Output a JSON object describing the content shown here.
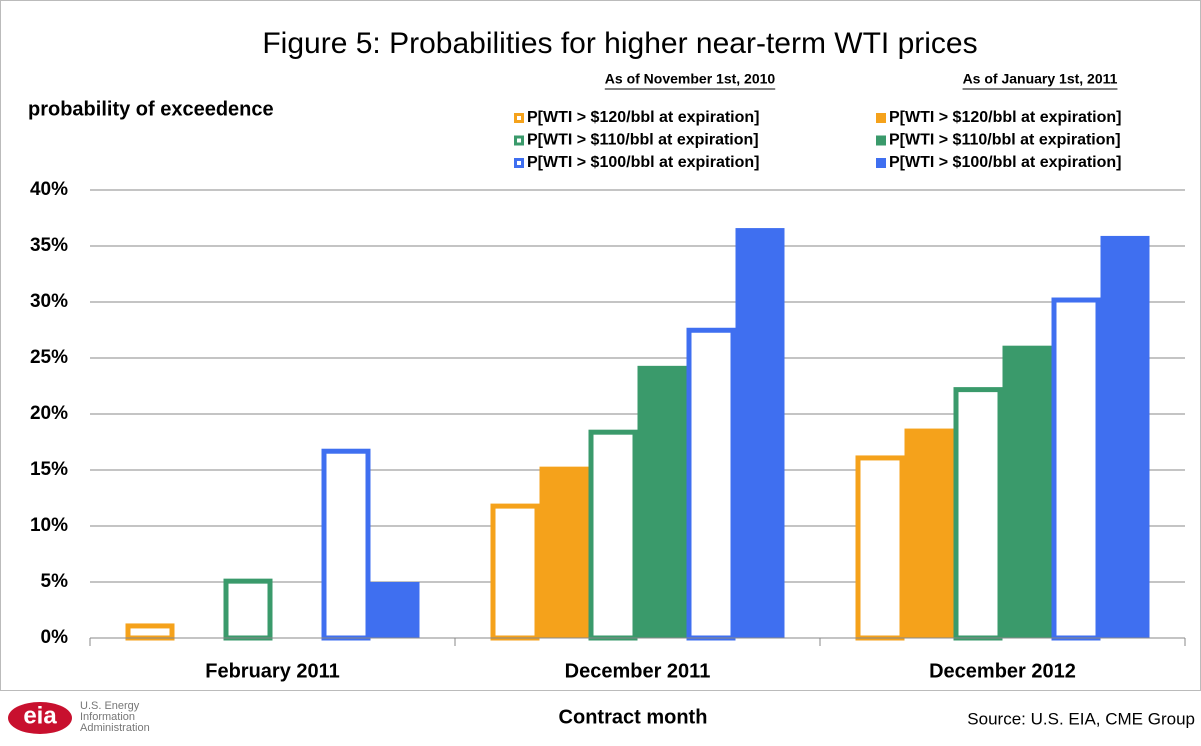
{
  "chart_data": {
    "type": "bar",
    "title": "Figure 5: Probabilities for higher near-term WTI prices",
    "y_label": "probability of exceedence",
    "x_label": "Contract month",
    "source": "Source:  U.S. EIA, CME Group",
    "logo": {
      "mark": "eia",
      "lines": [
        "U.S. Energy",
        "Information",
        "Administration"
      ]
    },
    "categories": [
      "February 2011",
      "December 2011",
      "December 2012"
    ],
    "ylim": [
      0,
      40
    ],
    "yticks": [
      {
        "value": 0,
        "label": "0%"
      },
      {
        "value": 5,
        "label": "5%"
      },
      {
        "value": 10,
        "label": "10%"
      },
      {
        "value": 15,
        "label": "15%"
      },
      {
        "value": 20,
        "label": "20%"
      },
      {
        "value": 25,
        "label": "25%"
      },
      {
        "value": 30,
        "label": "30%"
      },
      {
        "value": 35,
        "label": "35%"
      },
      {
        "value": 40,
        "label": "40%"
      }
    ],
    "grid": true,
    "series_groups": [
      {
        "name": "As of November 1st, 2010",
        "style": "outline",
        "series": [
          {
            "name": "P[WTI > $120/bbl at expiration]",
            "color": "#f5a21b",
            "values": [
              1.3,
              12.0,
              16.3
            ]
          },
          {
            "name": "P[WTI > $110/bbl at expiration]",
            "color": "#3a9a6b",
            "values": [
              5.3,
              18.6,
              22.4
            ]
          },
          {
            "name": "P[WTI > $100/bbl at expiration]",
            "color": "#3f6ff0",
            "values": [
              16.9,
              27.7,
              30.4
            ]
          }
        ]
      },
      {
        "name": "As of January 1st, 2011",
        "style": "filled",
        "series": [
          {
            "name": "P[WTI > $120/bbl at expiration]",
            "color": "#f5a21b",
            "values": [
              0,
              15.3,
              18.7
            ]
          },
          {
            "name": "P[WTI > $110/bbl at expiration]",
            "color": "#3a9a6b",
            "values": [
              0,
              24.3,
              26.1
            ]
          },
          {
            "name": "P[WTI > $100/bbl at expiration]",
            "color": "#3f6ff0",
            "values": [
              5.0,
              36.6,
              35.9
            ]
          }
        ]
      }
    ]
  }
}
